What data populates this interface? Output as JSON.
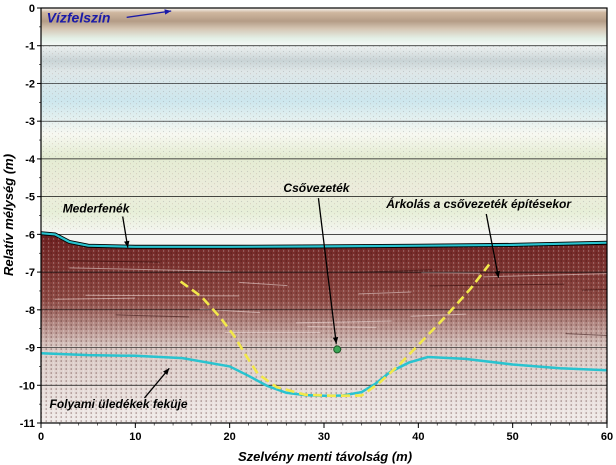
{
  "chart_data": {
    "type": "radargram",
    "xlabel": "Szelvény menti távolság (m)",
    "ylabel": "Relatív mélység (m)",
    "xlim": [
      0,
      60
    ],
    "ylim": [
      -11,
      0
    ],
    "x_ticks": [
      0,
      10,
      20,
      30,
      40,
      50,
      60
    ],
    "y_ticks": [
      0,
      -1,
      -2,
      -3,
      -4,
      -5,
      -6,
      -7,
      -8,
      -9,
      -10,
      -11
    ],
    "x_tick_labels": [
      "0",
      "10",
      "20",
      "30",
      "40",
      "50",
      "60"
    ],
    "y_tick_labels": [
      "0",
      "-1",
      "-2",
      "-3",
      "-4",
      "-5",
      "-6",
      "-7",
      "-8",
      "-9",
      "-10",
      "-11"
    ],
    "horizontal_grid": true,
    "layers": [
      {
        "name": "Mederfenék",
        "color": "#29c3cf",
        "points": [
          [
            0,
            -5.97
          ],
          [
            1.5,
            -6.0
          ],
          [
            3,
            -6.2
          ],
          [
            5,
            -6.3
          ],
          [
            10,
            -6.33
          ],
          [
            20,
            -6.33
          ],
          [
            30,
            -6.32
          ],
          [
            40,
            -6.3
          ],
          [
            50,
            -6.28
          ],
          [
            60,
            -6.22
          ]
        ]
      },
      {
        "name": "Folyami üledékek feküje",
        "color": "#29c3cf",
        "points": [
          [
            0,
            -9.15
          ],
          [
            5,
            -9.2
          ],
          [
            10,
            -9.22
          ],
          [
            15,
            -9.28
          ],
          [
            20,
            -9.5
          ],
          [
            22,
            -9.75
          ],
          [
            24,
            -10.02
          ],
          [
            26,
            -10.2
          ],
          [
            28,
            -10.26
          ],
          [
            30,
            -10.28
          ],
          [
            32,
            -10.27
          ],
          [
            34,
            -10.18
          ],
          [
            35.5,
            -9.95
          ],
          [
            37,
            -9.65
          ],
          [
            39,
            -9.4
          ],
          [
            41,
            -9.25
          ],
          [
            45,
            -9.3
          ],
          [
            50,
            -9.45
          ],
          [
            55,
            -9.55
          ],
          [
            60,
            -9.6
          ]
        ]
      },
      {
        "name": "Árkolás a csővezeték építésekor",
        "color": "#f2e84a",
        "style": "dashed",
        "points": [
          [
            14.8,
            -7.25
          ],
          [
            17,
            -7.65
          ],
          [
            19,
            -8.2
          ],
          [
            20.5,
            -8.7
          ],
          [
            21.7,
            -9.2
          ],
          [
            23,
            -9.7
          ],
          [
            25,
            -10.05
          ],
          [
            28,
            -10.25
          ],
          [
            31,
            -10.28
          ],
          [
            34,
            -10.27
          ],
          [
            35.8,
            -9.95
          ],
          [
            38,
            -9.45
          ],
          [
            40.5,
            -8.8
          ],
          [
            43,
            -8.15
          ],
          [
            45.5,
            -7.45
          ],
          [
            47.5,
            -6.8
          ]
        ]
      }
    ],
    "pipe": {
      "label": "Csővezeték",
      "x": 31.4,
      "y": -9.05
    },
    "annotations": [
      {
        "text": "Vízfelszín",
        "x": 0.6,
        "y": -0.38,
        "color": "#1a1aa8",
        "arrow_to": [
          13.8,
          -0.08
        ]
      },
      {
        "text": "Mederfenék",
        "x": 2.3,
        "y": -5.42,
        "arrow_to": [
          9.2,
          -6.35
        ]
      },
      {
        "text": "Csővezeték",
        "x": 25.7,
        "y": -4.88,
        "arrow_to": [
          31.3,
          -8.9
        ]
      },
      {
        "text": "Árkolás a csővezeték építésekor",
        "x": 36.6,
        "y": -5.3,
        "arrow_to": [
          48.5,
          -7.15
        ]
      },
      {
        "text": "Folyami üledékek feküje",
        "x": 0.9,
        "y": -10.6,
        "arrow_to": [
          13.6,
          -9.55
        ]
      }
    ]
  }
}
